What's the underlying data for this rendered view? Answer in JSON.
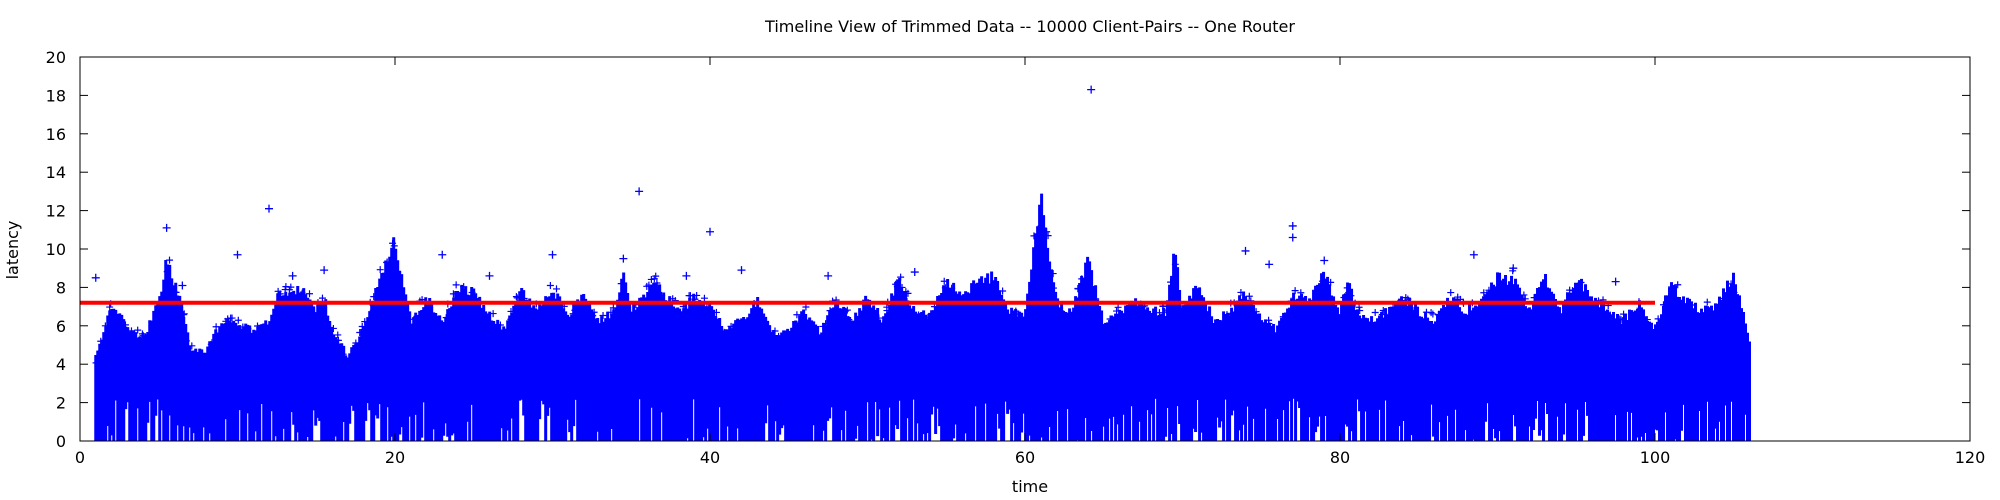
{
  "chart_data": {
    "type": "scatter",
    "title": "Timeline View of Trimmed Data -- 10000 Client-Pairs -- One Router",
    "xlabel": "time",
    "ylabel": "latency",
    "xlim": [
      0,
      120
    ],
    "ylim": [
      0,
      20
    ],
    "x_ticks": [
      0,
      20,
      40,
      60,
      80,
      100,
      120
    ],
    "y_ticks": [
      0,
      2,
      4,
      6,
      8,
      10,
      12,
      14,
      16,
      18,
      20
    ],
    "grid": false,
    "legend": "none",
    "colors": {
      "points": "#0000ff",
      "reference_line": "#ff0000"
    },
    "marker": "plus",
    "series": [
      {
        "kind": "scatter",
        "x_range": [
          1,
          106
        ],
        "typical_range": [
          0,
          7
        ],
        "profile": [
          [
            1,
            4.5
          ],
          [
            2,
            7.3
          ],
          [
            3,
            6.2
          ],
          [
            4,
            5.5
          ],
          [
            5,
            7.5
          ],
          [
            5.5,
            9.7
          ],
          [
            6.5,
            7.2
          ],
          [
            7,
            5.0
          ],
          [
            8,
            4.8
          ],
          [
            9,
            6.5
          ],
          [
            10,
            6.3
          ],
          [
            11,
            6.0
          ],
          [
            12,
            6.5
          ],
          [
            12.5,
            7.8
          ],
          [
            14,
            8.3
          ],
          [
            15,
            7.0
          ],
          [
            15.5,
            7.8
          ],
          [
            16,
            6.0
          ],
          [
            17,
            4.6
          ],
          [
            18,
            6.0
          ],
          [
            19,
            8.7
          ],
          [
            20,
            10.8
          ],
          [
            21,
            6.5
          ],
          [
            22,
            7.7
          ],
          [
            23,
            6.5
          ],
          [
            24,
            8.2
          ],
          [
            25,
            8.1
          ],
          [
            26,
            6.8
          ],
          [
            27,
            6.0
          ],
          [
            28,
            8.1
          ],
          [
            29,
            7.0
          ],
          [
            30,
            8.2
          ],
          [
            31,
            6.8
          ],
          [
            32,
            7.8
          ],
          [
            33,
            6.5
          ],
          [
            34,
            7.0
          ],
          [
            34.5,
            9.0
          ],
          [
            35,
            7.0
          ],
          [
            36.5,
            8.5
          ],
          [
            38,
            7.0
          ],
          [
            39,
            7.7
          ],
          [
            40,
            7.2
          ],
          [
            41,
            6.0
          ],
          [
            42,
            6.5
          ],
          [
            43,
            7.6
          ],
          [
            44,
            5.8
          ],
          [
            45,
            6.0
          ],
          [
            46,
            7.0
          ],
          [
            47,
            5.8
          ],
          [
            48,
            7.7
          ],
          [
            49,
            6.5
          ],
          [
            50,
            7.7
          ],
          [
            51,
            6.5
          ],
          [
            52,
            8.8
          ],
          [
            53,
            7.0
          ],
          [
            54,
            6.8
          ],
          [
            55,
            8.6
          ],
          [
            56,
            8.0
          ],
          [
            57,
            8.5
          ],
          [
            58,
            8.9
          ],
          [
            59,
            7.0
          ],
          [
            60,
            6.8
          ],
          [
            61,
            13.3
          ],
          [
            62,
            7.5
          ],
          [
            63,
            7.0
          ],
          [
            64,
            9.7
          ],
          [
            65,
            6.5
          ],
          [
            66,
            7.0
          ],
          [
            67,
            7.5
          ],
          [
            68,
            7.0
          ],
          [
            69,
            7.0
          ],
          [
            69.5,
            10.4
          ],
          [
            70,
            7.0
          ],
          [
            71,
            8.4
          ],
          [
            72,
            6.5
          ],
          [
            73,
            7.0
          ],
          [
            74,
            8.0
          ],
          [
            75,
            6.5
          ],
          [
            76,
            6.0
          ],
          [
            77,
            7.8
          ],
          [
            78,
            7.6
          ],
          [
            79,
            9.0
          ],
          [
            80,
            7.0
          ],
          [
            80.5,
            8.8
          ],
          [
            81,
            7.0
          ],
          [
            82,
            6.5
          ],
          [
            83,
            7.0
          ],
          [
            84,
            7.8
          ],
          [
            85,
            7.0
          ],
          [
            86,
            6.5
          ],
          [
            87,
            7.7
          ],
          [
            88,
            7.0
          ],
          [
            89,
            7.5
          ],
          [
            90,
            8.8
          ],
          [
            91,
            8.7
          ],
          [
            92,
            7.0
          ],
          [
            93,
            8.9
          ],
          [
            94,
            7.0
          ],
          [
            95,
            8.8
          ],
          [
            96,
            7.8
          ],
          [
            97,
            7.0
          ],
          [
            98,
            6.5
          ],
          [
            99,
            7.5
          ],
          [
            100,
            6.0
          ],
          [
            101,
            8.5
          ],
          [
            102,
            7.5
          ],
          [
            103,
            7.0
          ],
          [
            104,
            7.4
          ],
          [
            105,
            9.0
          ],
          [
            106,
            5.5
          ]
        ]
      },
      {
        "kind": "outliers",
        "points": [
          [
            1,
            8.5
          ],
          [
            5.5,
            11.1
          ],
          [
            6.5,
            8.1
          ],
          [
            10,
            9.7
          ],
          [
            12,
            12.1
          ],
          [
            13.5,
            8.6
          ],
          [
            15.5,
            8.9
          ],
          [
            19.5,
            9.3
          ],
          [
            23,
            9.7
          ],
          [
            26,
            8.6
          ],
          [
            30,
            9.7
          ],
          [
            34.5,
            9.5
          ],
          [
            35.5,
            13.0
          ],
          [
            38.5,
            8.6
          ],
          [
            40,
            10.9
          ],
          [
            42,
            8.9
          ],
          [
            47.5,
            8.6
          ],
          [
            53,
            8.8
          ],
          [
            64.2,
            18.3
          ],
          [
            74,
            9.9
          ],
          [
            75.5,
            9.2
          ],
          [
            77,
            11.2
          ],
          [
            77,
            10.6
          ],
          [
            79,
            9.4
          ],
          [
            88.5,
            9.7
          ],
          [
            91,
            9.0
          ],
          [
            97.5,
            8.3
          ]
        ]
      },
      {
        "kind": "line",
        "x": [
          0,
          100
        ],
        "y": [
          7.2,
          7.2
        ]
      }
    ]
  }
}
